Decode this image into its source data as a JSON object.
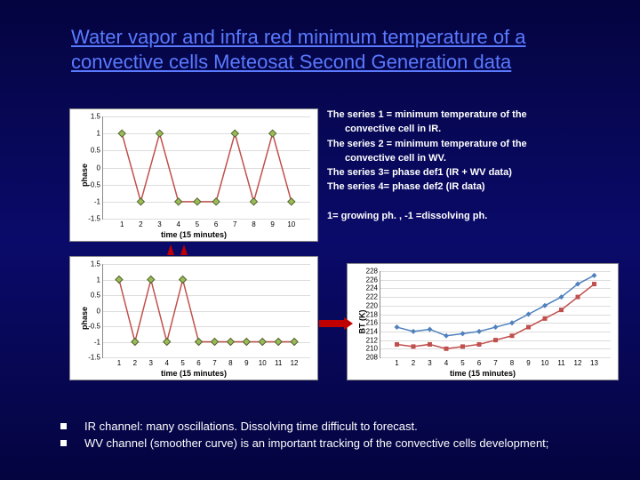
{
  "title": "Water vapor and infra red minimum temperature of a convective cells Meteosat Second Generation data",
  "text": {
    "l1a": "The series 1 = minimum temperature of the",
    "l1b": "convective cell in IR.",
    "l2a": "The series 2 = minimum temperature of the",
    "l2b": "convective cell in WV.",
    "l3": "The series 3= phase def1 (IR + WV data)",
    "l4": "The series 4= phase  def2 (IR data)",
    "l5": "1= growing ph.  , -1 =dissolving ph."
  },
  "bullets": {
    "b1": "IR channel: many oscillations. Dissolving time difficult to forecast.",
    "b2": "WV channel (smoother curve) is an important tracking of the convective cells development;"
  },
  "chart1": {
    "ylabel": "phase",
    "xlabel": "time (15 minutes)",
    "ylim": [
      -1.5,
      1.5
    ],
    "ytick_step": 0.5,
    "xlim": [
      0,
      11
    ],
    "xticks": [
      1,
      2,
      3,
      4,
      5,
      6,
      7,
      8,
      9,
      10
    ],
    "marker_fill": "#9bbb59",
    "marker_stroke": "#4f6228",
    "line_stroke": "#c0504d",
    "series": [
      1,
      -1,
      1,
      -1,
      -1,
      -1,
      1,
      -1,
      1,
      -1
    ]
  },
  "chart2": {
    "ylabel": "phase",
    "xlabel": "time (15 minutes)",
    "ylim": [
      -1.5,
      1.5
    ],
    "ytick_step": 0.5,
    "xlim": [
      0,
      13
    ],
    "xticks": [
      1,
      2,
      3,
      4,
      5,
      6,
      7,
      8,
      9,
      10,
      11,
      12
    ],
    "marker_fill": "#9bbb59",
    "marker_stroke": "#4f6228",
    "line_stroke": "#c0504d",
    "series": [
      1,
      -1,
      1,
      -1,
      1,
      -1,
      -1,
      -1,
      -1,
      -1,
      -1,
      -1
    ]
  },
  "chart3": {
    "ylabel": "BT (K)",
    "xlabel": "time (15 minutes)",
    "ylim": [
      208,
      228
    ],
    "ytick_step": 2,
    "xlim": [
      0,
      14
    ],
    "xticks": [
      1,
      2,
      3,
      4,
      5,
      6,
      7,
      8,
      9,
      10,
      11,
      12,
      13
    ],
    "stroke1": "#4f81bd",
    "fill1": "#4f81bd",
    "stroke2": "#c0504d",
    "fill2": "#c0504d",
    "series1": [
      215,
      214,
      214.5,
      213,
      213.5,
      214,
      215,
      216,
      218,
      220,
      222,
      225,
      227
    ],
    "series2": [
      211,
      210.5,
      211,
      210,
      210.5,
      211,
      212,
      213,
      215,
      217,
      219,
      222,
      225
    ]
  }
}
